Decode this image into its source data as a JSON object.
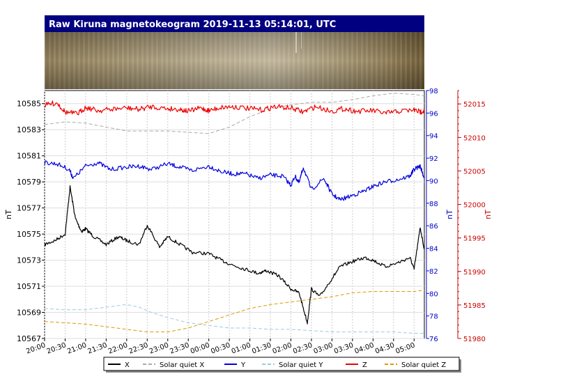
{
  "chart_data": {
    "type": "line",
    "title": "Raw Kiruna magnetokeogram 2019-11-13 05:14:01, UTC",
    "x_ticks": [
      "20:00",
      "20:30",
      "21:00",
      "21:30",
      "22:00",
      "22:30",
      "23:00",
      "23:30",
      "00:00",
      "00:30",
      "01:00",
      "01:30",
      "02:00",
      "02:30",
      "03:00",
      "03:30",
      "04:00",
      "04:30",
      "05:00"
    ],
    "x_range_hours": [
      20.0,
      29.25
    ],
    "left_axis": {
      "label": "nT",
      "range": [
        10567,
        10586
      ],
      "ticks": [
        "10585",
        "10583",
        "10581",
        "10579",
        "10577",
        "10575",
        "10573",
        "10571",
        "10569",
        "10567"
      ],
      "color": "#000000"
    },
    "right_axis_y": {
      "label": "nT",
      "range": [
        76,
        98
      ],
      "ticks": [
        "98",
        "96",
        "94",
        "92",
        "90",
        "88",
        "86",
        "84",
        "82",
        "80",
        "78",
        "76"
      ],
      "color": "#0000cc"
    },
    "right_axis_z": {
      "label": "nT",
      "range": [
        51980,
        52017
      ],
      "ticks": [
        "52015",
        "52010",
        "52005",
        "52000",
        "51995",
        "51990",
        "51985",
        "51980"
      ],
      "color": "#cc0000"
    },
    "grid": true,
    "legend_position": "bottom-center",
    "legend": [
      "X",
      "Solar quiet X",
      "Y",
      "Solar quiet Y",
      "Z",
      "Solar quiet Z"
    ],
    "colors": {
      "X": "#000000",
      "SQX": "#aaaaaa",
      "Y": "#0000dd",
      "SQY": "#99ccdd",
      "Z": "#ee0000",
      "SQZ": "#dd9900",
      "title_bg": "#000080"
    },
    "series": [
      {
        "name": "X",
        "axis": "left",
        "x": [
          20.0,
          20.25,
          20.5,
          20.62,
          20.75,
          20.9,
          21.0,
          21.2,
          21.5,
          21.8,
          22.0,
          22.3,
          22.5,
          22.8,
          23.0,
          23.3,
          23.6,
          24.0,
          24.3,
          24.6,
          24.9,
          25.2,
          25.4,
          25.7,
          26.0,
          26.2,
          26.4,
          26.5,
          26.7,
          27.0,
          27.2,
          27.5,
          27.8,
          28.0,
          28.3,
          28.6,
          28.9,
          29.0,
          29.15,
          29.25
        ],
        "values": [
          10574.2,
          10574.5,
          10575.0,
          10578.6,
          10576.2,
          10575.2,
          10575.4,
          10574.8,
          10574.2,
          10574.8,
          10574.5,
          10574.2,
          10575.7,
          10574.0,
          10574.8,
          10574.2,
          10573.6,
          10573.5,
          10573.0,
          10572.6,
          10572.3,
          10572.0,
          10572.2,
          10571.8,
          10570.8,
          10570.5,
          10568.2,
          10570.8,
          10570.2,
          10571.6,
          10572.5,
          10572.9,
          10573.2,
          10573.0,
          10572.5,
          10572.8,
          10573.2,
          10572.3,
          10575.5,
          10573.8
        ]
      },
      {
        "name": "Solar quiet X",
        "axis": "left",
        "x": [
          20.0,
          20.5,
          21.0,
          21.5,
          22.0,
          22.5,
          23.0,
          23.5,
          24.0,
          24.5,
          25.0,
          25.5,
          26.0,
          26.5,
          27.0,
          27.5,
          28.0,
          28.5,
          29.0,
          29.25
        ],
        "values": [
          10583.4,
          10583.6,
          10583.5,
          10583.2,
          10582.9,
          10582.9,
          10582.9,
          10582.8,
          10582.7,
          10583.2,
          10584.0,
          10584.6,
          10584.9,
          10585.1,
          10585.1,
          10585.3,
          10585.6,
          10585.8,
          10585.7,
          10585.6
        ]
      },
      {
        "name": "Y",
        "axis": "right_y",
        "x": [
          20.0,
          20.3,
          20.6,
          20.7,
          21.0,
          21.3,
          21.6,
          22.0,
          22.3,
          22.6,
          23.0,
          23.3,
          23.6,
          24.0,
          24.3,
          24.6,
          24.9,
          25.2,
          25.5,
          25.8,
          26.0,
          26.1,
          26.2,
          26.3,
          26.5,
          26.8,
          27.0,
          27.2,
          27.5,
          27.8,
          28.0,
          28.3,
          28.6,
          28.9,
          29.0,
          29.15,
          29.25
        ],
        "values": [
          91.6,
          91.5,
          91.0,
          90.2,
          91.3,
          91.6,
          91.0,
          91.2,
          91.3,
          91.0,
          91.5,
          91.2,
          90.9,
          91.3,
          90.8,
          90.6,
          90.6,
          90.2,
          90.5,
          90.4,
          89.6,
          90.4,
          89.8,
          91.2,
          89.2,
          90.2,
          88.8,
          88.3,
          88.7,
          89.1,
          89.5,
          89.9,
          90.1,
          90.4,
          91.0,
          91.3,
          90.2
        ]
      },
      {
        "name": "Solar quiet Y",
        "axis": "left",
        "x": [
          20.0,
          20.5,
          21.0,
          21.5,
          22.0,
          22.3,
          22.6,
          23.0,
          23.5,
          24.0,
          24.5,
          25.0,
          25.5,
          26.0,
          26.5,
          27.0,
          27.5,
          28.0,
          28.5,
          29.0,
          29.25
        ],
        "values": [
          10569.3,
          10569.2,
          10569.2,
          10569.4,
          10569.6,
          10569.4,
          10569.0,
          10568.6,
          10568.2,
          10568.0,
          10567.8,
          10567.8,
          10567.7,
          10567.7,
          10567.6,
          10567.5,
          10567.5,
          10567.5,
          10567.5,
          10567.4,
          10567.4
        ]
      },
      {
        "name": "Z",
        "axis": "right_z",
        "x": [
          20.0,
          20.3,
          20.5,
          20.8,
          21.0,
          21.3,
          21.6,
          22.0,
          22.3,
          22.6,
          23.0,
          23.3,
          23.5,
          23.8,
          24.0,
          24.3,
          24.6,
          25.0,
          25.3,
          25.6,
          26.0,
          26.3,
          26.6,
          27.0,
          27.3,
          27.6,
          28.0,
          28.3,
          28.6,
          29.0,
          29.15,
          29.25
        ],
        "values": [
          52014.8,
          52015.2,
          52013.8,
          52013.5,
          52014.5,
          52014.0,
          52014.2,
          52014.4,
          52014.2,
          52014.6,
          52014.3,
          52014.2,
          52013.9,
          52014.4,
          52014.0,
          52014.5,
          52014.6,
          52014.3,
          52014.1,
          52014.6,
          52014.4,
          52013.8,
          52014.6,
          52013.9,
          52014.3,
          52013.9,
          52014.0,
          52013.6,
          52013.9,
          52014.1,
          52013.8,
          52014.0
        ]
      },
      {
        "name": "Solar quiet Z",
        "axis": "left",
        "x": [
          20.0,
          20.5,
          21.0,
          21.5,
          22.0,
          22.5,
          23.0,
          23.5,
          24.0,
          24.5,
          25.0,
          25.5,
          26.0,
          26.5,
          27.0,
          27.5,
          28.0,
          28.5,
          29.0,
          29.25
        ],
        "values": [
          10568.3,
          10568.2,
          10568.1,
          10567.9,
          10567.7,
          10567.5,
          10567.5,
          10567.8,
          10568.3,
          10568.8,
          10569.3,
          10569.6,
          10569.8,
          10570.0,
          10570.2,
          10570.5,
          10570.6,
          10570.6,
          10570.6,
          10570.7
        ]
      }
    ]
  }
}
